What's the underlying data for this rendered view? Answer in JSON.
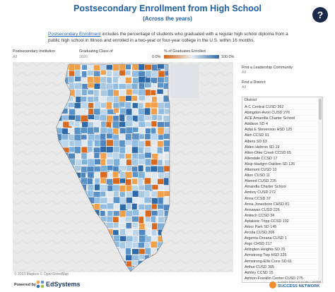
{
  "header": {
    "title": "Postsecondary Enrollment from High School",
    "subtitle": "(Across the years)",
    "help": "?"
  },
  "description": {
    "link": "Postsecondary Enrollment",
    "text": " includes the percentage of students who graduated with a regular high school diploma from a public high school in Illinois and enrolled in a two-year or four-year college in the U.S. within 16 months."
  },
  "filters": {
    "institution": {
      "label": "Postsecondary Institution",
      "value": "All"
    },
    "class": {
      "label": "Graduating Class of",
      "value": "2020"
    },
    "legend": {
      "label": "% of Graduates Enrolled",
      "min": "0.0%",
      "max": "100.0%"
    },
    "community": {
      "label": "Find a Leadership Community:",
      "value": "All"
    },
    "district": {
      "label": "Find a District:",
      "value": "All"
    }
  },
  "district_list": {
    "header": "District",
    "items": [
      "A-C Central CUSD 262",
      "Abingdon-Avon CUSD 276",
      "ACE Amandla Charter School",
      "Addison SD 4",
      "Adlai E Stevenson HSD 125",
      "Akin CCSD 91",
      "Albers SD 63",
      "Alden Hebron SD 19",
      "Allen-Otter Creek CCSD 65",
      "Allendale CCSD 17",
      "Alsip-Hazlgrn-Oaklwn SD 126",
      "Altamont CUSD 10",
      "Alton CUSD 11",
      "Alwood CUSD 225",
      "Amandla Charter School",
      "Amboy CUSD 272",
      "Anna CCSD 37",
      "Anna Jonesboro CHSD 81",
      "Annawan CUSD 226",
      "Antioch CCSD 34",
      "Aptakisic-Tripp CCSD 102",
      "Arbor Park SD 145",
      "Arcola CUSD 306",
      "Argenta-Oreana CUSD 1",
      "Argo CHSD 217",
      "Arlington Heights SD 25",
      "Armstrong Twp HSD 225",
      "Armstrong-Ellis Cons SD 61",
      "Arthur CUSD 305",
      "Ashley CCSD 15",
      "Ashton-Franklin Center CUSD 275"
    ]
  },
  "map": {
    "attribution": "© 2023 Mapbox © OpenStreetMap"
  },
  "footer": {
    "powered_by": "Powered by",
    "edsystems": "EdSystems",
    "network_top": "ILLINOIS EDUCATION AND CAREER",
    "network_bottom": "SUCCESS NETWORK"
  }
}
